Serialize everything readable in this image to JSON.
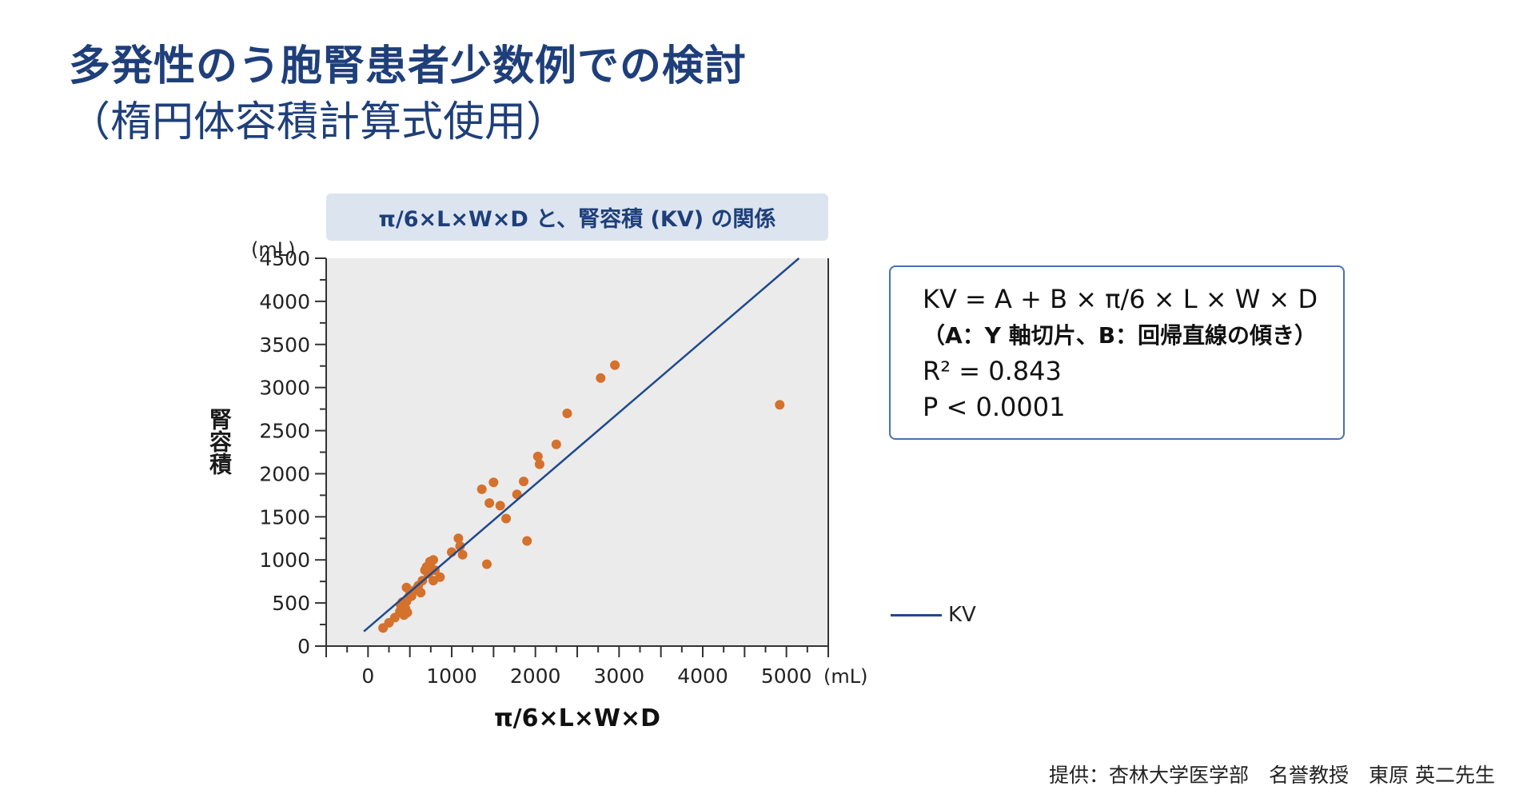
{
  "header": {
    "title": "多発性のう胞腎患者少数例での検討",
    "subtitle": "（楕円体容積計算式使用）"
  },
  "chart_banner": "π/6×L×W×D と、腎容積 (KV) の関係",
  "formula_box": {
    "line1": "KV = A + B × π/6 × L × W × D",
    "line2": "（A：Y 軸切片、B：回帰直線の傾き）",
    "line3": "R² = 0.843",
    "line4": "P < 0.0001"
  },
  "legend": {
    "line_label": "KV"
  },
  "credit": "提供：杏林大学医学部　名誉教授　東原 英二先生",
  "colors": {
    "title": "#1f3f7a",
    "points": "#d4712c",
    "line": "#1f4a8c",
    "plot_bg": "#ebebeb",
    "banner_bg": "#dbe4ef"
  },
  "chart_data": {
    "type": "scatter",
    "title": "π/6×L×W×D と、腎容積 (KV) の関係",
    "xlabel": "π/6×L×W×D",
    "ylabel": "腎容積",
    "x_unit": "(mL)",
    "y_unit": "(mL)",
    "xlim": [
      -500,
      5500
    ],
    "ylim": [
      0,
      4500
    ],
    "x_ticks": [
      0,
      1000,
      2000,
      3000,
      4000,
      5000
    ],
    "x_tick_labels": [
      "0",
      "1000",
      "2000",
      "3000",
      "4000",
      "5000"
    ],
    "y_ticks": [
      0,
      500,
      1000,
      1500,
      2000,
      2500,
      3000,
      3500,
      4000,
      4500
    ],
    "y_tick_labels": [
      "0",
      "500",
      "1000",
      "1500",
      "2000",
      "2500",
      "3000",
      "3500",
      "4000",
      "4500"
    ],
    "regression_line": {
      "name": "KV",
      "x": [
        -50,
        5150
      ],
      "y": [
        170,
        4500
      ]
    },
    "points": [
      [
        180,
        210
      ],
      [
        250,
        270
      ],
      [
        320,
        330
      ],
      [
        380,
        400
      ],
      [
        390,
        480
      ],
      [
        410,
        510
      ],
      [
        430,
        360
      ],
      [
        450,
        430
      ],
      [
        470,
        390
      ],
      [
        460,
        520
      ],
      [
        480,
        560
      ],
      [
        500,
        600
      ],
      [
        460,
        680
      ],
      [
        520,
        580
      ],
      [
        560,
        650
      ],
      [
        600,
        700
      ],
      [
        630,
        620
      ],
      [
        650,
        760
      ],
      [
        680,
        880
      ],
      [
        700,
        920
      ],
      [
        720,
        840
      ],
      [
        740,
        980
      ],
      [
        760,
        900
      ],
      [
        780,
        1000
      ],
      [
        780,
        760
      ],
      [
        800,
        880
      ],
      [
        860,
        800
      ],
      [
        1000,
        1090
      ],
      [
        1080,
        1250
      ],
      [
        1100,
        1160
      ],
      [
        1130,
        1060
      ],
      [
        1420,
        950
      ],
      [
        1360,
        1820
      ],
      [
        1450,
        1660
      ],
      [
        1500,
        1900
      ],
      [
        1580,
        1630
      ],
      [
        1650,
        1480
      ],
      [
        1780,
        1760
      ],
      [
        1860,
        1910
      ],
      [
        1900,
        1220
      ],
      [
        2030,
        2200
      ],
      [
        2050,
        2110
      ],
      [
        2250,
        2340
      ],
      [
        2380,
        2700
      ],
      [
        2780,
        3110
      ],
      [
        2950,
        3260
      ],
      [
        4920,
        2800
      ]
    ]
  }
}
